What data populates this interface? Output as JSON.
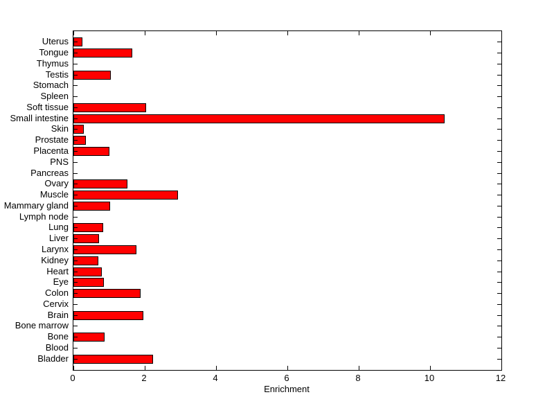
{
  "chart_data": {
    "type": "bar",
    "orientation": "horizontal",
    "title": "",
    "xlabel": "Enrichment",
    "ylabel": "",
    "xlim": [
      0,
      12
    ],
    "xticks": [
      0,
      2,
      4,
      6,
      8,
      10,
      12
    ],
    "grid": false,
    "legend": null,
    "box": true,
    "tick_direction": "in",
    "bar_color": "#ff0000",
    "bar_edge_color": "#000000",
    "axis_color": "#000000",
    "background_color": "#ffffff",
    "category_order": "top-to-bottom",
    "categories": [
      "Uterus",
      "Tongue",
      "Thymus",
      "Testis",
      "Stomach",
      "Spleen",
      "Soft tissue",
      "Small intestine",
      "Skin",
      "Prostate",
      "Placenta",
      "PNS",
      "Pancreas",
      "Ovary",
      "Muscle",
      "Mammary gland",
      "Lymph node",
      "Lung",
      "Liver",
      "Larynx",
      "Kidney",
      "Heart",
      "Eye",
      "Colon",
      "Cervix",
      "Brain",
      "Bone marrow",
      "Bone",
      "Blood",
      "Bladder"
    ],
    "values": [
      0.25,
      1.66,
      0,
      1.05,
      0,
      0,
      2.04,
      10.4,
      0.29,
      0.34,
      1.01,
      0,
      0,
      1.51,
      2.93,
      1.03,
      0,
      0.83,
      0.72,
      1.77,
      0.69,
      0.8,
      0.85,
      1.88,
      0,
      1.96,
      0,
      0.87,
      0,
      2.23
    ]
  }
}
